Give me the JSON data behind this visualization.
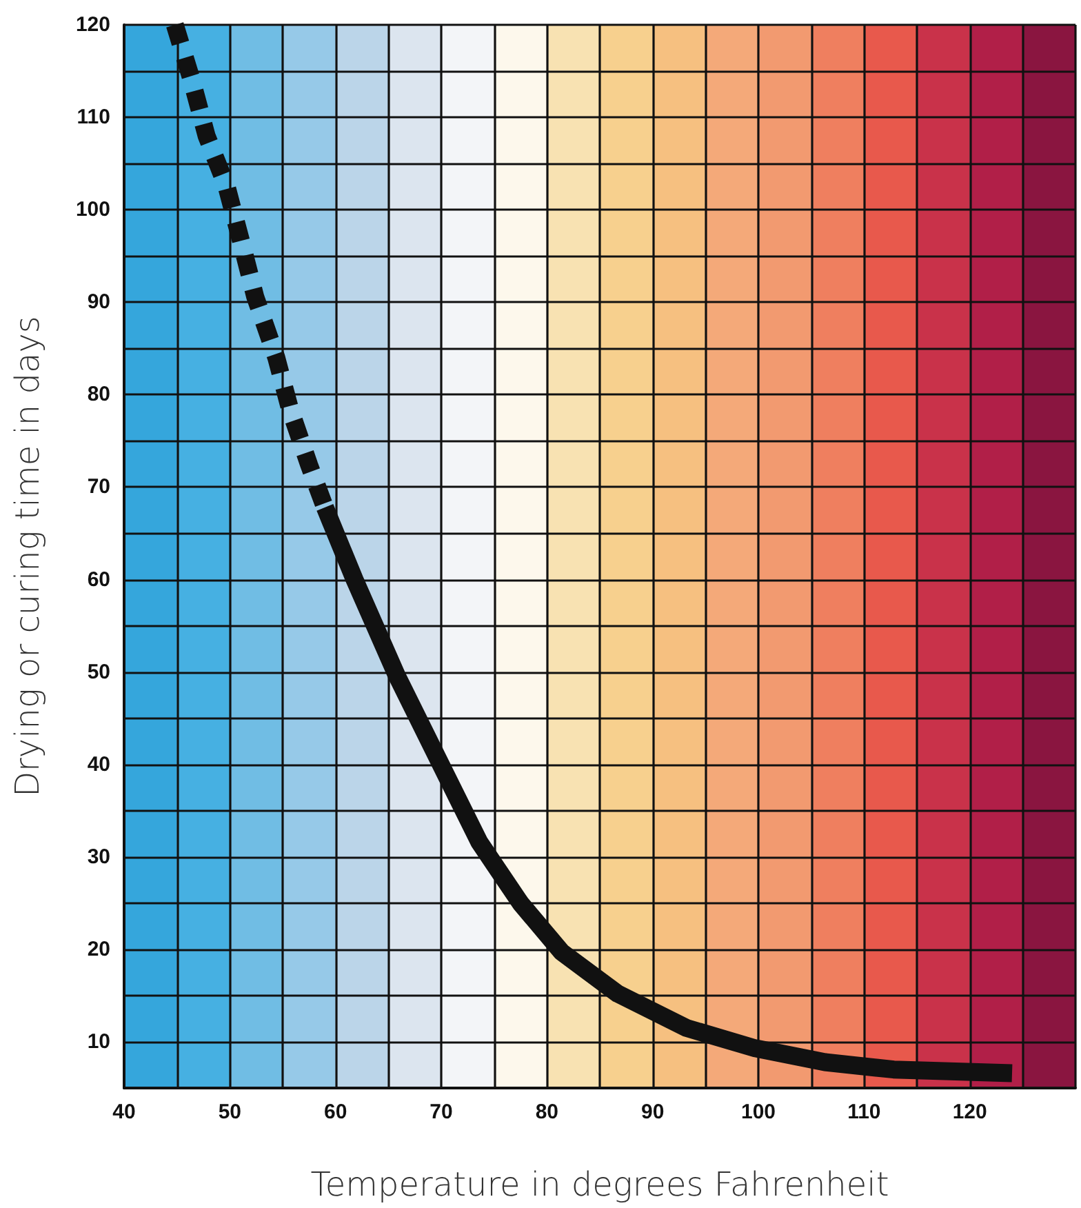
{
  "chart_data": {
    "type": "line",
    "xlabel": "Temperature in degrees Fahrenheit",
    "ylabel": "Drying or curing time in days",
    "xlim": [
      40,
      130
    ],
    "ylim": [
      5,
      120
    ],
    "xticks": [
      40,
      {
        "value": 45,
        "label": null
      },
      50,
      {
        "value": 55,
        "label": null
      },
      60,
      {
        "value": 65,
        "label": null
      },
      70,
      {
        "value": 75,
        "label": null
      },
      80,
      {
        "value": 85,
        "label": null
      },
      90,
      {
        "value": 95,
        "label": null
      },
      100,
      {
        "value": 105,
        "label": null
      },
      110,
      {
        "value": 115,
        "label": null
      },
      120,
      {
        "value": 125,
        "label": null
      },
      {
        "value": 130,
        "label": null
      }
    ],
    "yticks": [
      {
        "value": 5,
        "label": null
      },
      10,
      {
        "value": 15,
        "label": null
      },
      20,
      {
        "value": 25,
        "label": null
      },
      30,
      {
        "value": 35,
        "label": null
      },
      40,
      {
        "value": 45,
        "label": null
      },
      50,
      {
        "value": 55,
        "label": null
      },
      60,
      {
        "value": 65,
        "label": null
      },
      70,
      {
        "value": 75,
        "label": null
      },
      80,
      {
        "value": 85,
        "label": null
      },
      90,
      {
        "value": 95,
        "label": null
      },
      100,
      {
        "value": 105,
        "label": null
      },
      110,
      {
        "value": 115,
        "label": null
      },
      120
    ],
    "grid": true,
    "marker": "none",
    "series": [
      {
        "color": "#111111",
        "line_style": "dashed",
        "x": [
          44.8,
          46.4,
          47.8,
          49.7,
          51.2,
          52.4,
          54.4,
          55.7,
          57.5,
          59
        ],
        "values": [
          120,
          114,
          108,
          102.5,
          96,
          90.6,
          84,
          78.4,
          72.4,
          67.8
        ]
      },
      {
        "color": "#111111",
        "line_style": "solid",
        "x": [
          59,
          61.8,
          65.8,
          69.7,
          73.6,
          77.5,
          81.4,
          86.7,
          93.2,
          99.7,
          106.3,
          112.8,
          124
        ],
        "values": [
          67.8,
          60,
          49.6,
          40.6,
          31.6,
          25,
          19.7,
          15.2,
          11.5,
          9.3,
          7.8,
          7,
          6.6
        ]
      }
    ],
    "bands": [
      {
        "axis": "x",
        "from": 40,
        "to": 45,
        "label": null,
        "color": "#35a6dc"
      },
      {
        "axis": "x",
        "from": 45,
        "to": 50,
        "label": null,
        "color": "#46b0e2"
      },
      {
        "axis": "x",
        "from": 50,
        "to": 55,
        "label": null,
        "color": "#70bde4"
      },
      {
        "axis": "x",
        "from": 55,
        "to": 60,
        "label": null,
        "color": "#96c9e8"
      },
      {
        "axis": "x",
        "from": 60,
        "to": 65,
        "label": null,
        "color": "#bbd5e9"
      },
      {
        "axis": "x",
        "from": 65,
        "to": 70,
        "label": null,
        "color": "#dce5ef"
      },
      {
        "axis": "x",
        "from": 70,
        "to": 75,
        "label": null,
        "color": "#f3f5f8"
      },
      {
        "axis": "x",
        "from": 75,
        "to": 80,
        "label": null,
        "color": "#fdf8ec"
      },
      {
        "axis": "x",
        "from": 80,
        "to": 85,
        "label": null,
        "color": "#f8e2b2"
      },
      {
        "axis": "x",
        "from": 85,
        "to": 90,
        "label": null,
        "color": "#f7d08e"
      },
      {
        "axis": "x",
        "from": 90,
        "to": 95,
        "label": null,
        "color": "#f6c080"
      },
      {
        "axis": "x",
        "from": 95,
        "to": 100,
        "label": null,
        "color": "#f4a979"
      },
      {
        "axis": "x",
        "from": 100,
        "to": 105,
        "label": null,
        "color": "#f29a70"
      },
      {
        "axis": "x",
        "from": 105,
        "to": 110,
        "label": null,
        "color": "#ef7f5f"
      },
      {
        "axis": "x",
        "from": 110,
        "to": 115,
        "label": null,
        "color": "#e8594c"
      },
      {
        "axis": "x",
        "from": 115,
        "to": 120,
        "label": null,
        "color": "#c9324a"
      },
      {
        "axis": "x",
        "from": 120,
        "to": 125,
        "label": null,
        "color": "#b11f48"
      },
      {
        "axis": "x",
        "from": 125,
        "to": 130,
        "label": null,
        "color": "#8a1540"
      }
    ]
  }
}
